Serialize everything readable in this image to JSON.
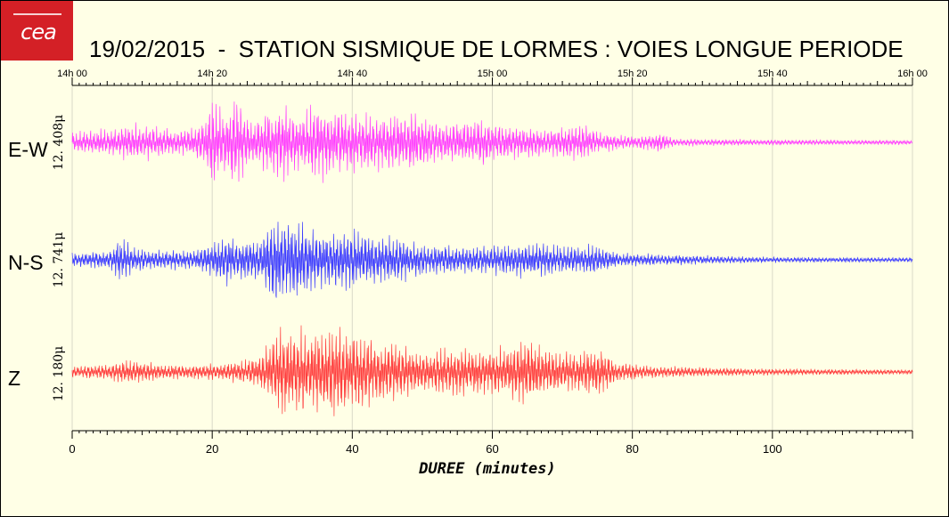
{
  "logo": {
    "text": "cea"
  },
  "title": "19/02/2015  -  STATION SISMIQUE DE LORMES : VOIES LONGUE PERIODE",
  "chart_data": {
    "type": "line",
    "title": "19/02/2015  -  STATION SISMIQUE DE LORMES : VOIES LONGUE PERIODE",
    "xlabel": "DUREE (minutes)",
    "xlim": [
      0,
      120
    ],
    "x_ticks_bottom": [
      "0",
      "20",
      "40",
      "60",
      "80",
      "100"
    ],
    "x_ticks_top": [
      "14h 00",
      "14h 20",
      "14h 40",
      "15h 00",
      "15h 20",
      "15h 40",
      "16h 00"
    ],
    "grid": "vertical",
    "series": [
      {
        "name": "E-W",
        "scale_label": "12. 408μ",
        "color": "#ff3cff",
        "envelope": [
          [
            0,
            0.22
          ],
          [
            5,
            0.28
          ],
          [
            9,
            0.38
          ],
          [
            13,
            0.32
          ],
          [
            16,
            0.25
          ],
          [
            19,
            0.55
          ],
          [
            20,
            0.9
          ],
          [
            22,
            0.6
          ],
          [
            23,
            1.0
          ],
          [
            25,
            0.55
          ],
          [
            27,
            0.6
          ],
          [
            29,
            0.7
          ],
          [
            30,
            0.85
          ],
          [
            32,
            0.55
          ],
          [
            35,
            0.8
          ],
          [
            37,
            0.7
          ],
          [
            40,
            0.6
          ],
          [
            44,
            0.55
          ],
          [
            49,
            0.7
          ],
          [
            52,
            0.42
          ],
          [
            58,
            0.5
          ],
          [
            63,
            0.38
          ],
          [
            68,
            0.28
          ],
          [
            73,
            0.4
          ],
          [
            75,
            0.22
          ],
          [
            80,
            0.12
          ],
          [
            84,
            0.22
          ],
          [
            86,
            0.08
          ],
          [
            100,
            0.06
          ],
          [
            120,
            0.05
          ]
        ]
      },
      {
        "name": "N-S",
        "scale_label": "12. 741μ",
        "color": "#3c3cff",
        "envelope": [
          [
            0,
            0.15
          ],
          [
            5,
            0.2
          ],
          [
            7,
            0.45
          ],
          [
            9,
            0.25
          ],
          [
            13,
            0.2
          ],
          [
            18,
            0.22
          ],
          [
            20,
            0.4
          ],
          [
            22,
            0.55
          ],
          [
            24,
            0.4
          ],
          [
            27,
            0.45
          ],
          [
            28,
            0.9
          ],
          [
            30,
            1.0
          ],
          [
            33,
            0.75
          ],
          [
            36,
            0.6
          ],
          [
            40,
            0.65
          ],
          [
            43,
            0.55
          ],
          [
            47,
            0.45
          ],
          [
            50,
            0.35
          ],
          [
            55,
            0.28
          ],
          [
            60,
            0.3
          ],
          [
            65,
            0.38
          ],
          [
            70,
            0.28
          ],
          [
            75,
            0.32
          ],
          [
            78,
            0.15
          ],
          [
            85,
            0.12
          ],
          [
            93,
            0.08
          ],
          [
            100,
            0.06
          ],
          [
            120,
            0.05
          ]
        ]
      },
      {
        "name": "Z",
        "scale_label": "12. 180μ",
        "color": "#ff3c3c",
        "envelope": [
          [
            0,
            0.12
          ],
          [
            5,
            0.16
          ],
          [
            8,
            0.25
          ],
          [
            13,
            0.16
          ],
          [
            18,
            0.15
          ],
          [
            22,
            0.2
          ],
          [
            25,
            0.25
          ],
          [
            27,
            0.35
          ],
          [
            29,
            0.8
          ],
          [
            31,
            1.0
          ],
          [
            34,
            0.8
          ],
          [
            37,
            0.95
          ],
          [
            40,
            0.85
          ],
          [
            43,
            0.7
          ],
          [
            46,
            0.6
          ],
          [
            50,
            0.45
          ],
          [
            55,
            0.5
          ],
          [
            60,
            0.45
          ],
          [
            65,
            0.7
          ],
          [
            68,
            0.5
          ],
          [
            72,
            0.4
          ],
          [
            75,
            0.55
          ],
          [
            78,
            0.2
          ],
          [
            84,
            0.12
          ],
          [
            90,
            0.1
          ],
          [
            100,
            0.07
          ],
          [
            120,
            0.05
          ]
        ]
      }
    ]
  }
}
